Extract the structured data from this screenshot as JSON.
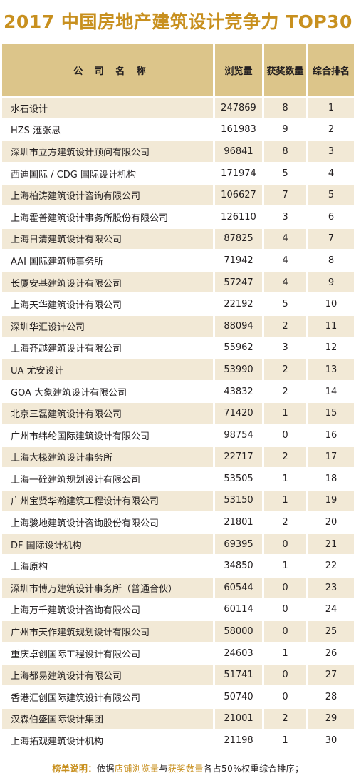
{
  "title": "2017 中国房地产建筑设计竞争力 TOP30",
  "headers": {
    "name": "公 司 名 称",
    "views": "浏览量",
    "awards": "获奖数量",
    "rank": "综合排名"
  },
  "rows": [
    {
      "name": "水石设计",
      "views": "247869",
      "awards": "8",
      "rank": "1"
    },
    {
      "name": "HZS 滙张思",
      "views": "161983",
      "awards": "9",
      "rank": "2"
    },
    {
      "name": "深圳市立方建筑设计顾问有限公司",
      "views": "96841",
      "awards": "8",
      "rank": "3"
    },
    {
      "name": "西迪国际 / CDG 国际设计机构",
      "views": "171974",
      "awards": "5",
      "rank": "4"
    },
    {
      "name": "上海柏涛建筑设计咨询有限公司",
      "views": "106627",
      "awards": "7",
      "rank": "5"
    },
    {
      "name": "上海霍普建筑设计事务所股份有限公司",
      "views": "126110",
      "awards": "3",
      "rank": "6"
    },
    {
      "name": "上海日清建筑设计有限公司",
      "views": "87825",
      "awards": "4",
      "rank": "7"
    },
    {
      "name": "AAI 国际建筑师事务所",
      "views": "71942",
      "awards": "4",
      "rank": "8"
    },
    {
      "name": "长厦安基建筑设计有限公司",
      "views": "57247",
      "awards": "4",
      "rank": "9"
    },
    {
      "name": "上海天华建筑设计有限公司",
      "views": "22192",
      "awards": "5",
      "rank": "10"
    },
    {
      "name": "深圳华汇设计公司",
      "views": "88094",
      "awards": "2",
      "rank": "11"
    },
    {
      "name": "上海齐越建筑设计有限公司",
      "views": "55962",
      "awards": "3",
      "rank": "12"
    },
    {
      "name": "UA 尤安设计",
      "views": "53990",
      "awards": "2",
      "rank": "13"
    },
    {
      "name": "GOA 大象建筑设计有限公司",
      "views": "43832",
      "awards": "2",
      "rank": "14"
    },
    {
      "name": "北京三磊建筑设计有限公司",
      "views": "71420",
      "awards": "1",
      "rank": "15"
    },
    {
      "name": "广州市纬纶国际建筑设计有限公司",
      "views": "98754",
      "awards": "0",
      "rank": "16"
    },
    {
      "name": "上海大椽建筑设计事务所",
      "views": "22717",
      "awards": "2",
      "rank": "17"
    },
    {
      "name": "上海一砼建筑规划设计有限公司",
      "views": "53505",
      "awards": "1",
      "rank": "18"
    },
    {
      "name": "广州宝贤华瀚建筑工程设计有限公司",
      "views": "53150",
      "awards": "1",
      "rank": "19"
    },
    {
      "name": "上海骏地建筑设计咨询股份有限公司",
      "views": "21801",
      "awards": "2",
      "rank": "20"
    },
    {
      "name": "DF 国际设计机构",
      "views": "69395",
      "awards": "0",
      "rank": "21"
    },
    {
      "name": "上海原构",
      "views": "34850",
      "awards": "1",
      "rank": "22"
    },
    {
      "name": "深圳市博万建筑设计事务所（普通合伙）",
      "views": "60544",
      "awards": "0",
      "rank": "23"
    },
    {
      "name": "上海万千建筑设计咨询有限公司",
      "views": "60114",
      "awards": "0",
      "rank": "24"
    },
    {
      "name": "广州市天作建筑规划设计有限公司",
      "views": "58000",
      "awards": "0",
      "rank": "25"
    },
    {
      "name": "重庆卓创国际工程设计有限公司",
      "views": "24603",
      "awards": "1",
      "rank": "26"
    },
    {
      "name": "上海都易建筑设计有限公司",
      "views": "51741",
      "awards": "0",
      "rank": "27"
    },
    {
      "name": "香港汇创国际建筑设计有限公司",
      "views": "50740",
      "awards": "0",
      "rank": "28"
    },
    {
      "name": "汉森伯盛国际设计集团",
      "views": "21001",
      "awards": "2",
      "rank": "29"
    },
    {
      "name": "上海拓观建筑设计机构",
      "views": "21198",
      "awards": "1",
      "rank": "30"
    }
  ],
  "footnote": {
    "label": "榜单说明：",
    "part1": "依据",
    "accent1": "店铺浏览量",
    "part2": "与",
    "accent2": "获奖数量",
    "part3": "各占50%权重综合排序；"
  },
  "colors": {
    "title": "#c8901f",
    "header_bg": "#dcc58a",
    "stripe": "#f2e9d6"
  }
}
